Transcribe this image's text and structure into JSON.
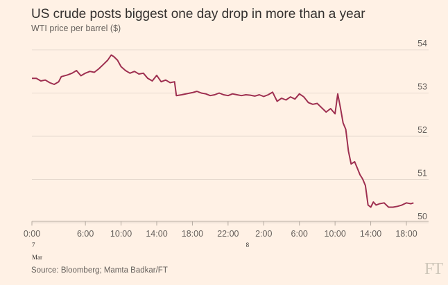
{
  "chart_data": {
    "type": "line",
    "title": "US crude posts biggest one day drop in more than a year",
    "subtitle": "WTI price per barrel ($)",
    "source": "Source: Bloomberg; Mamta Badkar/FT",
    "logo": "FT",
    "ylim": [
      49.8,
      54.1
    ],
    "yticks": [
      50,
      51,
      52,
      53,
      54
    ],
    "xlim": [
      0,
      44
    ],
    "xticks": [
      {
        "x": 0,
        "label": "0:00"
      },
      {
        "x": 6,
        "label": "6:00"
      },
      {
        "x": 10,
        "label": "10:00"
      },
      {
        "x": 14,
        "label": "14:00"
      },
      {
        "x": 18,
        "label": "18:00"
      },
      {
        "x": 22,
        "label": "22:00"
      },
      {
        "x": 26,
        "label": "2:00"
      },
      {
        "x": 30,
        "label": "6:00"
      },
      {
        "x": 34,
        "label": "10:00"
      },
      {
        "x": 38,
        "label": "14:00"
      },
      {
        "x": 42,
        "label": "18:00"
      }
    ],
    "date_labels": [
      {
        "x": 0,
        "day": "7",
        "month": "Mar"
      },
      {
        "x": 24,
        "day": "8",
        "month": ""
      }
    ],
    "grid": true,
    "line_color": "#9e2f50",
    "series": [
      {
        "values": [
          [
            0,
            53.18
          ],
          [
            0.5,
            53.18
          ],
          [
            1,
            53.12
          ],
          [
            1.5,
            53.14
          ],
          [
            2,
            53.08
          ],
          [
            2.5,
            53.04
          ],
          [
            3,
            53.1
          ],
          [
            3.3,
            53.22
          ],
          [
            4,
            53.26
          ],
          [
            4.5,
            53.3
          ],
          [
            5,
            53.36
          ],
          [
            5.5,
            53.24
          ],
          [
            6,
            53.3
          ],
          [
            6.5,
            53.34
          ],
          [
            7,
            53.32
          ],
          [
            7.5,
            53.4
          ],
          [
            8,
            53.5
          ],
          [
            8.5,
            53.6
          ],
          [
            8.9,
            53.72
          ],
          [
            9.2,
            53.68
          ],
          [
            9.6,
            53.6
          ],
          [
            10,
            53.45
          ],
          [
            10.5,
            53.36
          ],
          [
            11,
            53.3
          ],
          [
            11.5,
            53.34
          ],
          [
            12,
            53.28
          ],
          [
            12.5,
            53.3
          ],
          [
            13,
            53.18
          ],
          [
            13.5,
            53.12
          ],
          [
            14,
            53.25
          ],
          [
            14.5,
            53.1
          ],
          [
            15,
            53.14
          ],
          [
            15.5,
            53.08
          ],
          [
            16,
            53.1
          ],
          [
            16.2,
            52.78
          ],
          [
            16.8,
            52.8
          ],
          [
            17.5,
            52.83
          ],
          [
            18,
            52.85
          ],
          [
            18.5,
            52.88
          ],
          [
            19,
            52.84
          ],
          [
            19.5,
            52.82
          ],
          [
            20,
            52.78
          ],
          [
            20.5,
            52.8
          ],
          [
            21,
            52.84
          ],
          [
            21.5,
            52.8
          ],
          [
            22,
            52.78
          ],
          [
            22.5,
            52.82
          ],
          [
            23,
            52.8
          ],
          [
            23.5,
            52.78
          ],
          [
            24,
            52.8
          ],
          [
            24.5,
            52.79
          ],
          [
            25,
            52.77
          ],
          [
            25.5,
            52.8
          ],
          [
            26,
            52.76
          ],
          [
            26.5,
            52.8
          ],
          [
            27,
            52.86
          ],
          [
            27.5,
            52.65
          ],
          [
            28,
            52.72
          ],
          [
            28.5,
            52.68
          ],
          [
            29,
            52.75
          ],
          [
            29.5,
            52.7
          ],
          [
            30,
            52.82
          ],
          [
            30.5,
            52.75
          ],
          [
            31,
            52.62
          ],
          [
            31.5,
            52.58
          ],
          [
            32,
            52.6
          ],
          [
            32.5,
            52.5
          ],
          [
            33,
            52.4
          ],
          [
            33.5,
            52.48
          ],
          [
            34,
            52.36
          ],
          [
            34.3,
            52.82
          ],
          [
            34.6,
            52.5
          ],
          [
            34.9,
            52.15
          ],
          [
            35.2,
            52.0
          ],
          [
            35.5,
            51.5
          ],
          [
            35.8,
            51.2
          ],
          [
            36.2,
            51.25
          ],
          [
            36.5,
            51.1
          ],
          [
            36.8,
            50.95
          ],
          [
            37.1,
            50.85
          ],
          [
            37.4,
            50.7
          ],
          [
            37.7,
            50.25
          ],
          [
            38,
            50.2
          ],
          [
            38.3,
            50.32
          ],
          [
            38.6,
            50.25
          ],
          [
            39,
            50.28
          ],
          [
            39.5,
            50.3
          ],
          [
            40,
            50.2
          ],
          [
            40.5,
            50.2
          ],
          [
            41,
            50.22
          ],
          [
            41.5,
            50.25
          ],
          [
            42,
            50.3
          ],
          [
            42.5,
            50.28
          ],
          [
            42.8,
            50.3
          ]
        ]
      }
    ]
  }
}
